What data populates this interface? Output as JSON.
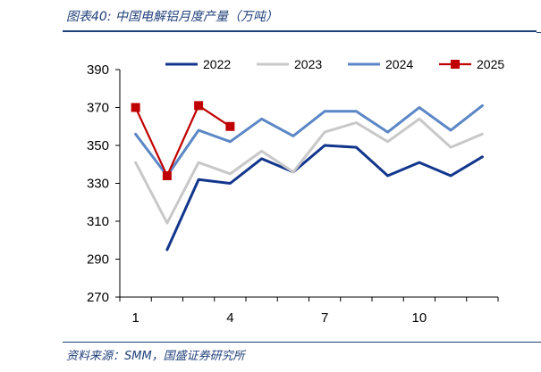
{
  "figure": {
    "title": "图表40:  中国电解铝月度产量（万吨）",
    "source": "资料来源：SMM，国盛证券研究所"
  },
  "colors": {
    "2022": "#12368c",
    "2023": "#c8c8c8",
    "2024": "#5b87c6",
    "2025": "#c00000",
    "axis": "#000000",
    "accent": "#1f3f7a"
  },
  "chart_data": {
    "type": "line",
    "title": "中国电解铝月度产量（万吨）",
    "xlabel": "",
    "ylabel": "",
    "x": [
      1,
      2,
      3,
      4,
      5,
      6,
      7,
      8,
      9,
      10,
      11,
      12
    ],
    "x_tick_labels": [
      "1",
      "4",
      "7",
      "10"
    ],
    "x_tick_values": [
      1,
      4,
      7,
      10
    ],
    "ylim": [
      270,
      390
    ],
    "y_ticks": [
      270,
      290,
      310,
      330,
      350,
      370,
      390
    ],
    "grid": false,
    "legend_position": "top-right",
    "series": [
      {
        "name": "2022",
        "values": [
          null,
          295,
          332,
          330,
          343,
          336,
          350,
          349,
          334,
          341,
          334,
          344
        ]
      },
      {
        "name": "2023",
        "values": [
          341,
          309,
          341,
          335,
          347,
          336,
          357,
          362,
          352,
          364,
          349,
          356
        ]
      },
      {
        "name": "2024",
        "values": [
          356,
          334,
          358,
          352,
          364,
          355,
          368,
          368,
          357,
          370,
          358,
          371
        ]
      },
      {
        "name": "2025",
        "values": [
          370,
          334,
          371,
          360,
          null,
          null,
          null,
          null,
          null,
          null,
          null,
          null
        ],
        "marker": "square"
      }
    ]
  }
}
